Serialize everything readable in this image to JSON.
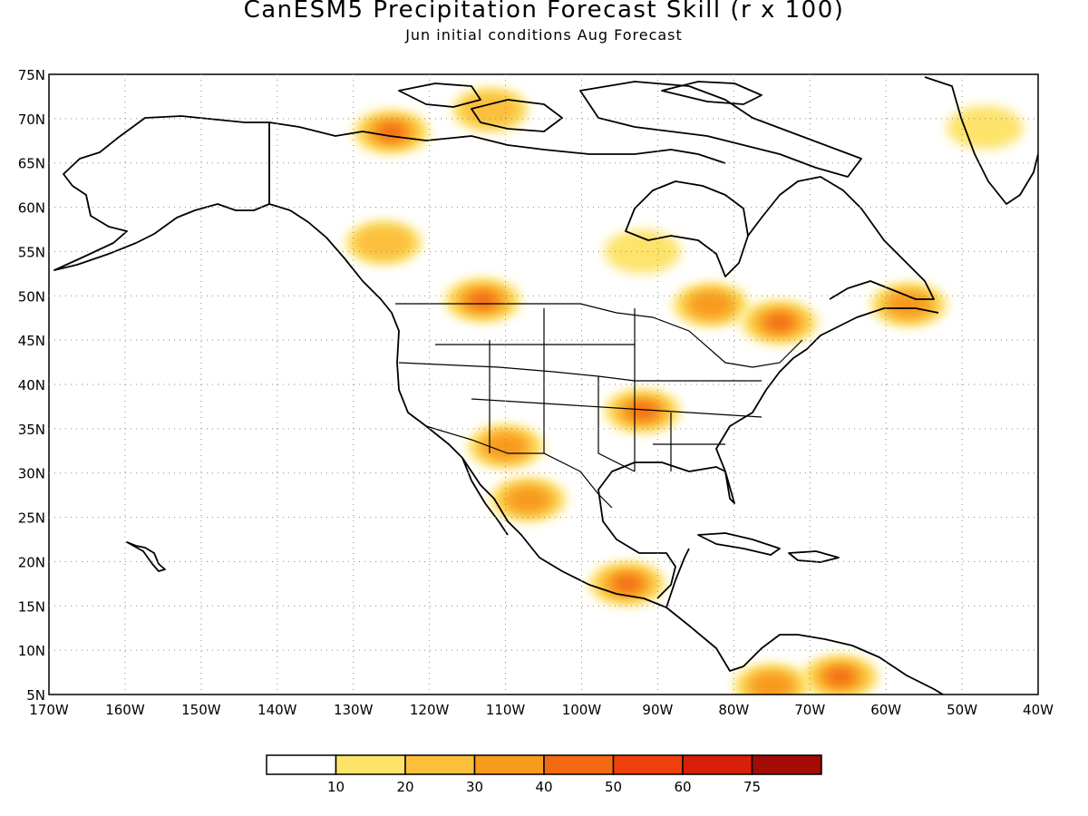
{
  "title": "CanESM5 Precipitation Forecast Skill (r x 100)",
  "subtitle": "Jun initial conditions  Aug Forecast",
  "map": {
    "lon_range": [
      -170,
      -40
    ],
    "lat_range": [
      5,
      75
    ],
    "lon_ticks": [
      "170W",
      "160W",
      "150W",
      "140W",
      "130W",
      "120W",
      "110W",
      "100W",
      "90W",
      "80W",
      "70W",
      "60W",
      "50W",
      "40W"
    ],
    "lat_ticks": [
      "5N",
      "10N",
      "15N",
      "20N",
      "25N",
      "30N",
      "35N",
      "40N",
      "45N",
      "50N",
      "55N",
      "60N",
      "65N",
      "70N",
      "75N"
    ],
    "grid": "dotted"
  },
  "legend": {
    "labels": [
      "10",
      "20",
      "30",
      "40",
      "50",
      "60",
      "75"
    ],
    "colors": [
      "#ffffff",
      "#fde36a",
      "#fbbf3c",
      "#f89a1e",
      "#f46a12",
      "#ee3f0c",
      "#d71f0a",
      "#a30b05"
    ]
  },
  "skill_regions": [
    {
      "region": "western-canada-rockies",
      "lon": -126,
      "lat": 56,
      "level": 2
    },
    {
      "region": "northern-plains-canada",
      "lon": -113,
      "lat": 49.5,
      "level": 4
    },
    {
      "region": "yukon-mackenzie",
      "lon": -125,
      "lat": 68.5,
      "level": 4
    },
    {
      "region": "ozarks-mississippi-valley",
      "lon": -92,
      "lat": 37,
      "level": 4
    },
    {
      "region": "arizona-new-mexico",
      "lon": -110,
      "lat": 33,
      "level": 3
    },
    {
      "region": "northwest-mexico",
      "lon": -107,
      "lat": 27,
      "level": 3
    },
    {
      "region": "ontario-quebec",
      "lon": -83,
      "lat": 49,
      "level": 3
    },
    {
      "region": "quebec-south",
      "lon": -74,
      "lat": 47,
      "level": 4
    },
    {
      "region": "newfoundland",
      "lon": -57,
      "lat": 49,
      "level": 3
    },
    {
      "region": "southern-mexico",
      "lon": -94,
      "lat": 17.5,
      "level": 4
    },
    {
      "region": "venezuela",
      "lon": -66,
      "lat": 7,
      "level": 4
    },
    {
      "region": "colombia",
      "lon": -75,
      "lat": 6,
      "level": 3
    },
    {
      "region": "greenland-east",
      "lon": -47,
      "lat": 69,
      "level": 1
    },
    {
      "region": "arctic-islands",
      "lon": -112,
      "lat": 71,
      "level": 2
    },
    {
      "region": "hudson-bay-west",
      "lon": -92,
      "lat": 55,
      "level": 1
    }
  ]
}
